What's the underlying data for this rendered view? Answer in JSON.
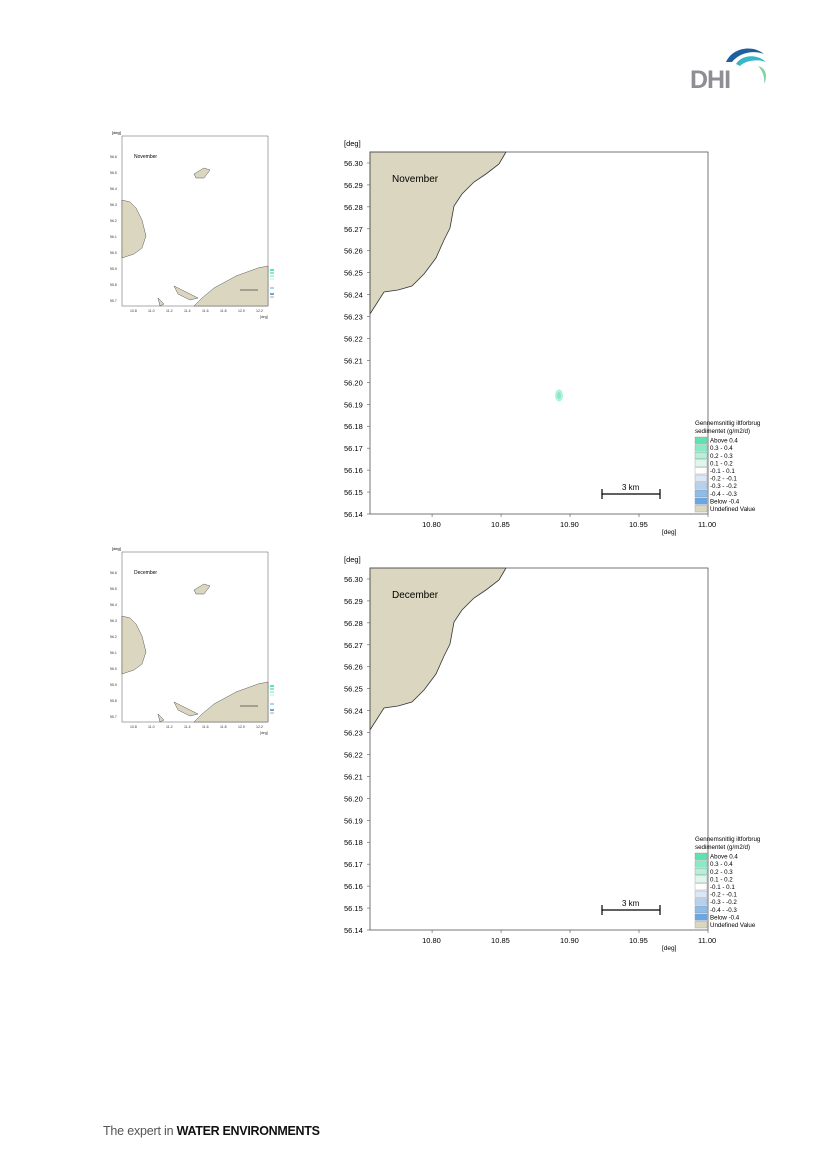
{
  "brand": {
    "logo_text": "DHI",
    "footer_prefix": "The expert in ",
    "footer_strong": "WATER ENVIRONMENTS"
  },
  "colors": {
    "land": "#dad6bf",
    "coast": "#333333",
    "accent_teal": "#38b6c6",
    "logo_blue": "#1f5f9e",
    "logo_grey": "#8d8f94"
  },
  "maps": [
    {
      "month": "November",
      "axis_unit": "[deg]",
      "y_ticks": [
        "56.30",
        "56.29",
        "56.28",
        "56.27",
        "56.26",
        "56.25",
        "56.24",
        "56.23",
        "56.22",
        "56.21",
        "56.20",
        "56.19",
        "56.18",
        "56.17",
        "56.16",
        "56.15",
        "56.14"
      ],
      "x_ticks": [
        "10.80",
        "10.85",
        "10.90",
        "10.95",
        "11.00"
      ],
      "scale_bar": "3 km",
      "legend": {
        "title_line1": "Gennemsnitlig iltforbrug",
        "title_line2": "sedimentet (g/m2/d)",
        "items": [
          {
            "label": "Above  0.4",
            "color": "#5ee3b0"
          },
          {
            "label": "  0.3 -  0.4",
            "color": "#8aeac5"
          },
          {
            "label": "  0.2 -  0.3",
            "color": "#b3f1d9"
          },
          {
            "label": "  0.1 -  0.2",
            "color": "#dcf8ec"
          },
          {
            "label": " -0.1 -  0.1",
            "color": "#ffffff"
          },
          {
            "label": " -0.2 - -0.1",
            "color": "#d8e8f8"
          },
          {
            "label": " -0.3 - -0.2",
            "color": "#b3d2f2"
          },
          {
            "label": " -0.4 - -0.3",
            "color": "#8ebcec"
          },
          {
            "label": "Below -0.4",
            "color": "#69a6e6"
          },
          {
            "label": "Undefined Value",
            "color": "#dad6bf"
          }
        ]
      },
      "has_patch": true,
      "patch": {
        "lon": 10.892,
        "lat": 56.194
      }
    },
    {
      "month": "December",
      "axis_unit": "[deg]",
      "y_ticks": [
        "56.30",
        "56.29",
        "56.28",
        "56.27",
        "56.26",
        "56.25",
        "56.24",
        "56.23",
        "56.22",
        "56.21",
        "56.20",
        "56.19",
        "56.18",
        "56.17",
        "56.16",
        "56.15",
        "56.14"
      ],
      "x_ticks": [
        "10.80",
        "10.85",
        "10.90",
        "10.95",
        "11.00"
      ],
      "scale_bar": "3 km",
      "legend": {
        "title_line1": "Gennemsnitlig iltforbrug",
        "title_line2": "sedimentet (g/m2/d)",
        "items": [
          {
            "label": "Above  0.4",
            "color": "#5ee3b0"
          },
          {
            "label": "  0.3 -  0.4",
            "color": "#8aeac5"
          },
          {
            "label": "  0.2 -  0.3",
            "color": "#b3f1d9"
          },
          {
            "label": "  0.1 -  0.2",
            "color": "#dcf8ec"
          },
          {
            "label": " -0.1 -  0.1",
            "color": "#ffffff"
          },
          {
            "label": " -0.2 - -0.1",
            "color": "#d8e8f8"
          },
          {
            "label": " -0.3 - -0.2",
            "color": "#b3d2f2"
          },
          {
            "label": " -0.4 - -0.3",
            "color": "#8ebcec"
          },
          {
            "label": "Below -0.4",
            "color": "#69a6e6"
          },
          {
            "label": "Undefined Value",
            "color": "#dad6bf"
          }
        ]
      },
      "has_patch": false
    }
  ]
}
